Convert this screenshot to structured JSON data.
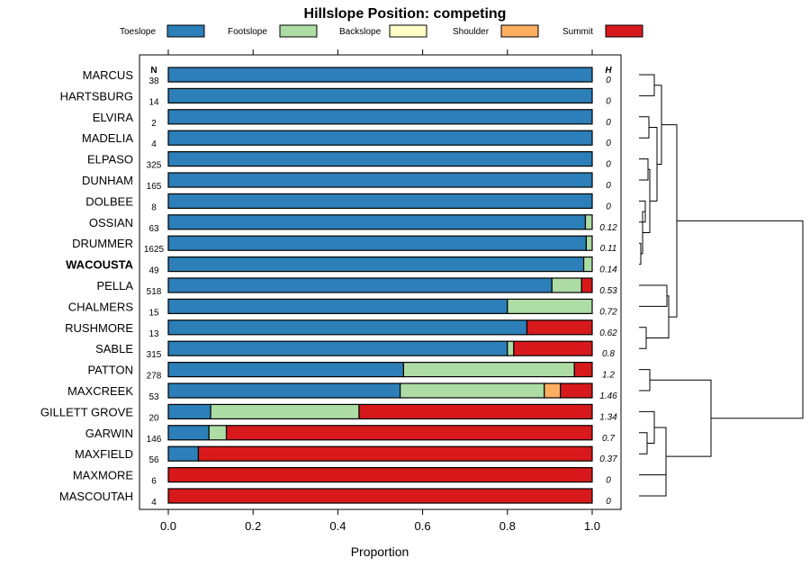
{
  "chart_data": {
    "type": "bar",
    "stacked": true,
    "orientation": "horizontal",
    "title": "Hillslope Position: competing",
    "xlabel": "Proportion",
    "xlim": [
      0,
      1
    ],
    "x_ticks": [
      "0.0",
      "0.2",
      "0.4",
      "0.6",
      "0.8",
      "1.0"
    ],
    "x_tick_values": [
      0,
      0.2,
      0.4,
      0.6,
      0.8,
      1.0
    ],
    "n_header": "N",
    "h_header": "H",
    "legend": [
      {
        "name": "Toeslope",
        "color": "#2c7fb8"
      },
      {
        "name": "Footslope",
        "color": "#addda4"
      },
      {
        "name": "Backslope",
        "color": "#ffffc6"
      },
      {
        "name": "Shoulder",
        "color": "#fdae61"
      },
      {
        "name": "Summit",
        "color": "#d7191c"
      }
    ],
    "rows": [
      {
        "name": "MARCUS",
        "n": "38",
        "h": "0",
        "values": [
          1,
          0,
          0,
          0,
          0
        ],
        "bold": false
      },
      {
        "name": "HARTSBURG",
        "n": "14",
        "h": "0",
        "values": [
          1,
          0,
          0,
          0,
          0
        ],
        "bold": false
      },
      {
        "name": "ELVIRA",
        "n": "2",
        "h": "0",
        "values": [
          1,
          0,
          0,
          0,
          0
        ],
        "bold": false
      },
      {
        "name": "MADELIA",
        "n": "4",
        "h": "0",
        "values": [
          1,
          0,
          0,
          0,
          0
        ],
        "bold": false
      },
      {
        "name": "ELPASO",
        "n": "325",
        "h": "0",
        "values": [
          1,
          0,
          0,
          0,
          0
        ],
        "bold": false
      },
      {
        "name": "DUNHAM",
        "n": "165",
        "h": "0",
        "values": [
          1,
          0,
          0,
          0,
          0
        ],
        "bold": false
      },
      {
        "name": "DOLBEE",
        "n": "8",
        "h": "0",
        "values": [
          1,
          0,
          0,
          0,
          0
        ],
        "bold": false
      },
      {
        "name": "OSSIAN",
        "n": "63",
        "h": "0.12",
        "values": [
          0.984,
          0.016,
          0,
          0,
          0
        ],
        "bold": false
      },
      {
        "name": "DRUMMER",
        "n": "1625",
        "h": "0.11",
        "values": [
          0.986,
          0.014,
          0,
          0,
          0
        ],
        "bold": false
      },
      {
        "name": "WACOUSTA",
        "n": "49",
        "h": "0.14",
        "values": [
          0.98,
          0.02,
          0,
          0,
          0
        ],
        "bold": true
      },
      {
        "name": "PELLA",
        "n": "518",
        "h": "0.53",
        "values": [
          0.905,
          0.07,
          0,
          0,
          0.025
        ],
        "bold": false
      },
      {
        "name": "CHALMERS",
        "n": "15",
        "h": "0.72",
        "values": [
          0.8,
          0.2,
          0,
          0,
          0
        ],
        "bold": false
      },
      {
        "name": "RUSHMORE",
        "n": "13",
        "h": "0.62",
        "values": [
          0.846,
          0,
          0,
          0,
          0.154
        ],
        "bold": false
      },
      {
        "name": "SABLE",
        "n": "315",
        "h": "0.8",
        "values": [
          0.8,
          0.015,
          0,
          0,
          0.185
        ],
        "bold": false
      },
      {
        "name": "PATTON",
        "n": "278",
        "h": "1.2",
        "values": [
          0.555,
          0.403,
          0,
          0,
          0.042
        ],
        "bold": false
      },
      {
        "name": "MAXCREEK",
        "n": "53",
        "h": "1.46",
        "values": [
          0.547,
          0.34,
          0,
          0.038,
          0.075
        ],
        "bold": false
      },
      {
        "name": "GILLETT GROVE",
        "n": "20",
        "h": "1.34",
        "values": [
          0.1,
          0.35,
          0,
          0,
          0.55
        ],
        "bold": false
      },
      {
        "name": "GARWIN",
        "n": "146",
        "h": "0.7",
        "values": [
          0.096,
          0.041,
          0,
          0,
          0.863
        ],
        "bold": false
      },
      {
        "name": "MAXFIELD",
        "n": "56",
        "h": "0.37",
        "values": [
          0.071,
          0,
          0,
          0,
          0.929
        ],
        "bold": false
      },
      {
        "name": "MAXMORE",
        "n": "6",
        "h": "0",
        "values": [
          0,
          0,
          0,
          0,
          1
        ],
        "bold": false
      },
      {
        "name": "MASCOUTAH",
        "n": "4",
        "h": "0",
        "values": [
          0,
          0,
          0,
          0,
          1
        ],
        "bold": false
      }
    ],
    "dendrogram": true
  }
}
